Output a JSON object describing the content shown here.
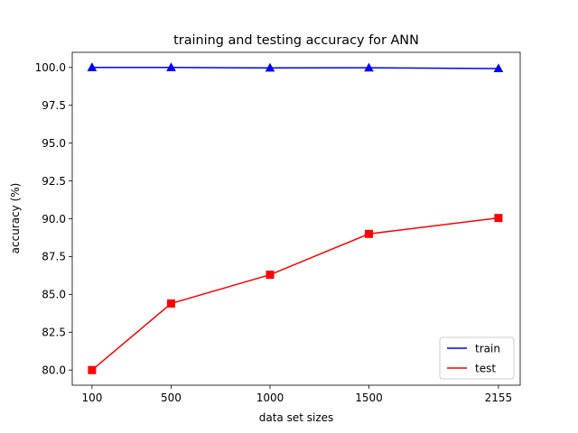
{
  "chart_data": {
    "type": "line",
    "title": "training and testing accuracy for ANN",
    "xlabel": "data set sizes",
    "ylabel": "accuracy (%)",
    "x": [
      100,
      500,
      1000,
      1500,
      2155
    ],
    "x_tick_labels": [
      "100",
      "500",
      "1000",
      "1500",
      "2155"
    ],
    "y_ticks": [
      80.0,
      82.5,
      85.0,
      87.5,
      90.0,
      92.5,
      95.0,
      97.5,
      100.0
    ],
    "y_tick_labels": [
      "80.0",
      "82.5",
      "85.0",
      "87.5",
      "90.0",
      "92.5",
      "95.0",
      "97.5",
      "100.0"
    ],
    "xlim": [
      0,
      2265
    ],
    "ylim": [
      79.0,
      101.0
    ],
    "grid": false,
    "legend_position": "lower-right",
    "series": [
      {
        "name": "train",
        "color": "#0000ff",
        "marker": "triangle",
        "values": [
          100.0,
          100.0,
          99.97,
          99.98,
          99.93
        ]
      },
      {
        "name": "test",
        "color": "#ff0000",
        "marker": "square",
        "values": [
          80.0,
          84.4,
          86.3,
          89.0,
          90.05
        ]
      }
    ]
  }
}
